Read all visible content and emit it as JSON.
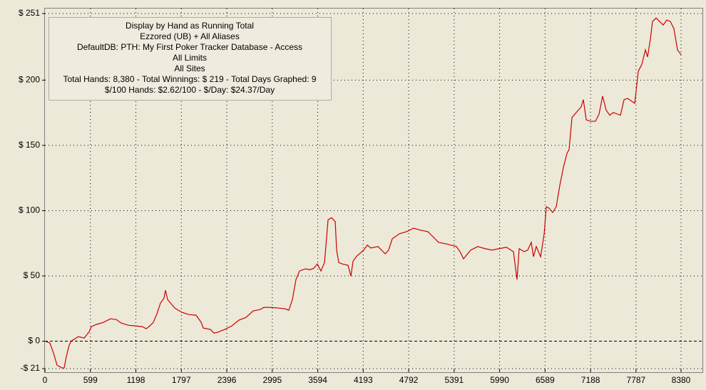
{
  "chart_data": {
    "type": "line",
    "info_box": [
      "Display by Hand as Running Total",
      "Ezzored (UB) + All Aliases",
      "DefaultDB: PTH: My First Poker Tracker Database - Access",
      "All Limits",
      "All Sites",
      "Total Hands: 8,380 - Total Winnings: $ 219 - Total Days Graphed: 9",
      "$/100 Hands: $2.62/100 - $/Day: $24.37/Day"
    ],
    "x": [
      0,
      66,
      113,
      160,
      225,
      254,
      282,
      319,
      348,
      442,
      517,
      583,
      611,
      676,
      770,
      864,
      940,
      1005,
      1099,
      1193,
      1287,
      1334,
      1381,
      1428,
      1475,
      1522,
      1569,
      1588,
      1616,
      1710,
      1804,
      1898,
      1992,
      2058,
      2086,
      2180,
      2227,
      2274,
      2368,
      2462,
      2555,
      2649,
      2743,
      2837,
      2884,
      2978,
      3072,
      3166,
      3213,
      3260,
      3307,
      3354,
      3429,
      3495,
      3542,
      3589,
      3636,
      3683,
      3730,
      3777,
      3824,
      3843,
      3871,
      3918,
      3993,
      4031,
      4059,
      4106,
      4200,
      4247,
      4294,
      4388,
      4482,
      4528,
      4575,
      4669,
      4763,
      4857,
      4951,
      5045,
      5092,
      5186,
      5280,
      5421,
      5468,
      5515,
      5609,
      5703,
      5797,
      5891,
      5985,
      6079,
      6172,
      6219,
      6248,
      6313,
      6360,
      6407,
      6436,
      6473,
      6530,
      6577,
      6605,
      6642,
      6689,
      6736,
      6783,
      6830,
      6877,
      6905,
      6943,
      7000,
      7065,
      7093,
      7131,
      7187,
      7253,
      7300,
      7347,
      7394,
      7441,
      7488,
      7582,
      7629,
      7676,
      7770,
      7817,
      7864,
      7911,
      7939,
      7976,
      8004,
      8051,
      8098,
      8145,
      8192,
      8239,
      8286,
      8333,
      8380
    ],
    "values": [
      0,
      -1.4,
      -9.1,
      -18.4,
      -20.5,
      -20.5,
      -11.7,
      -3.1,
      0.2,
      3.5,
      2.4,
      7.3,
      11.1,
      12.8,
      14.4,
      17.2,
      16.6,
      13.9,
      12.2,
      11.7,
      11.1,
      9.5,
      11.7,
      14.4,
      21.0,
      29.2,
      33.0,
      39.0,
      31.9,
      25.4,
      22.1,
      20.4,
      19.9,
      14.4,
      10.1,
      9.0,
      6.2,
      6.8,
      9.0,
      11.7,
      16.1,
      18.2,
      23.2,
      24.3,
      25.9,
      25.9,
      25.4,
      24.8,
      23.7,
      31.9,
      47.2,
      53.8,
      55.4,
      54.8,
      55.9,
      59.2,
      53.8,
      60.2,
      93.0,
      94.6,
      91.6,
      69.8,
      60.2,
      59.2,
      58.1,
      49.9,
      61.3,
      65.1,
      69.8,
      73.6,
      71.4,
      72.5,
      67.0,
      69.8,
      78.4,
      82.3,
      83.9,
      86.6,
      85.0,
      83.9,
      81.2,
      75.7,
      74.6,
      72.5,
      68.6,
      63.1,
      69.8,
      72.5,
      70.9,
      69.8,
      70.9,
      72.0,
      68.6,
      47.2,
      70.9,
      68.6,
      69.8,
      75.7,
      64.7,
      72.5,
      64.7,
      82.3,
      103.0,
      101.9,
      98.6,
      103.0,
      119.4,
      133.0,
      143.9,
      146.7,
      171.3,
      175.2,
      179.6,
      185.0,
      169.6,
      168.5,
      168.5,
      174.0,
      187.8,
      176.9,
      173.1,
      175.2,
      173.1,
      185.0,
      186.0,
      182.2,
      206.8,
      212.2,
      223.2,
      217.7,
      231.3,
      244.9,
      247.6,
      244.9,
      242.2,
      246.0,
      244.9,
      239.4,
      223.2,
      219.5
    ],
    "color": "#cc0000",
    "xlim": [
      0,
      8380
    ],
    "xticks": [
      0,
      599,
      1198,
      1797,
      2396,
      2995,
      3594,
      4193,
      4792,
      5391,
      5990,
      6589,
      7188,
      7787,
      8380
    ],
    "ylim": [
      -21,
      251
    ],
    "yticks": [
      {
        "value": -21,
        "label": "-$ 21"
      },
      {
        "value": 0,
        "label": "$ 0"
      },
      {
        "value": 50,
        "label": "$ 50"
      },
      {
        "value": 100,
        "label": "$ 100"
      },
      {
        "value": 150,
        "label": "$ 150"
      },
      {
        "value": 200,
        "label": "$ 200"
      },
      {
        "value": 251,
        "label": "$ 251"
      }
    ],
    "grid": true
  }
}
